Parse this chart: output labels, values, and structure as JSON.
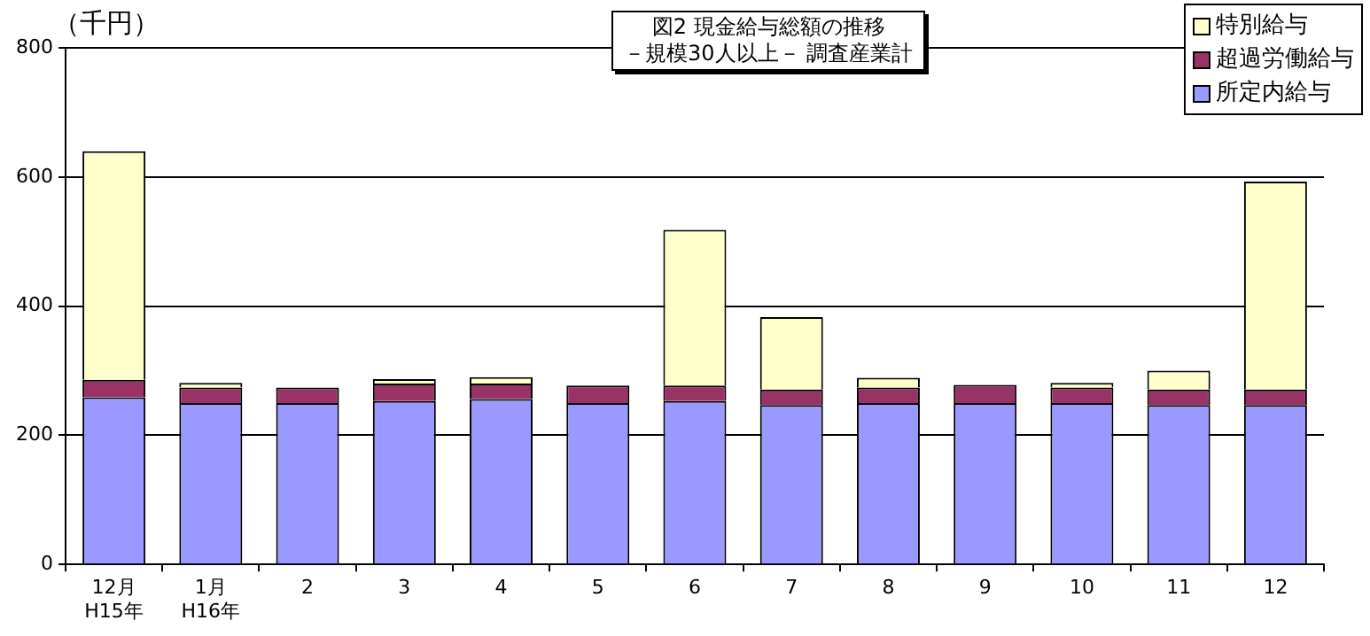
{
  "chart_data": {
    "type": "bar",
    "title": "図2 現金給与総額の推移",
    "subtitle": "－規模30人以上－ 調査産業計",
    "ylabel": "（千円）",
    "categories": [
      "12月\nH15年",
      "1月\nH16年",
      "2",
      "3",
      "4",
      "5",
      "6",
      "7",
      "8",
      "9",
      "10",
      "11",
      "12"
    ],
    "stacked": true,
    "series": [
      {
        "name": "所定内給与",
        "color": "#9999ff",
        "values": [
          259,
          250,
          250,
          253,
          256,
          250,
          253,
          247,
          250,
          250,
          250,
          247,
          247
        ]
      },
      {
        "name": "超過労働給与",
        "color": "#993366",
        "values": [
          27,
          24,
          24,
          27,
          24,
          27,
          24,
          24,
          24,
          28,
          24,
          24,
          24
        ]
      },
      {
        "name": "特別給与",
        "color": "#ffffcc",
        "values": [
          354,
          7,
          0,
          7,
          10,
          0,
          241,
          112,
          15,
          0,
          7,
          29,
          322
        ]
      }
    ],
    "ylim": [
      0,
      800
    ],
    "yticks": [
      0,
      200,
      400,
      600,
      800
    ],
    "grid": "y",
    "legend": "top right"
  }
}
